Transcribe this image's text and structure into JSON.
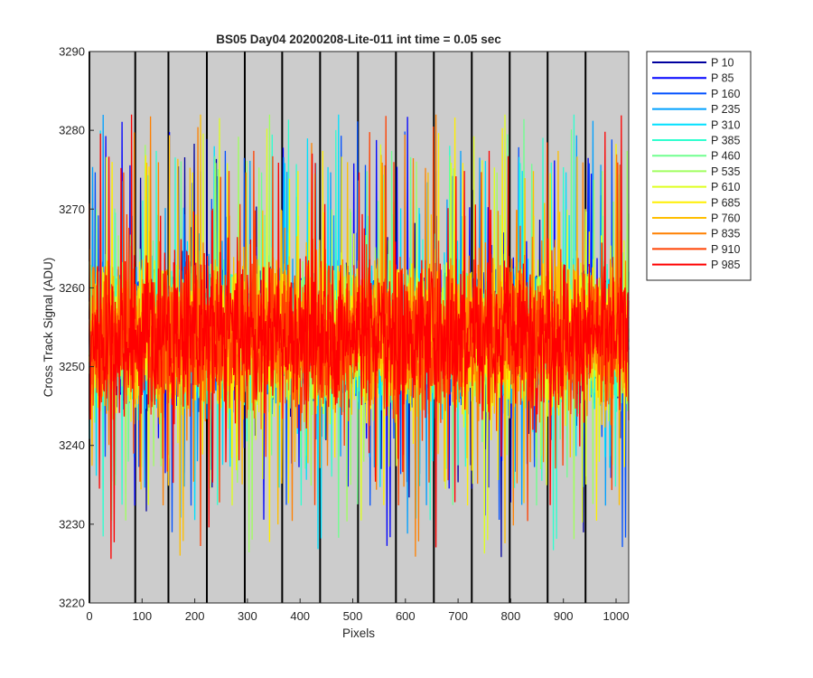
{
  "chart_data": {
    "type": "line",
    "title": "BS05 Day04 20200208-Lite-011 int time = 0.05 sec",
    "xlabel": "Pixels",
    "ylabel": "Cross Track Signal (ADU)",
    "xlim": [
      0,
      1024
    ],
    "ylim": [
      3220,
      3290
    ],
    "xticks": [
      0,
      100,
      200,
      300,
      400,
      500,
      600,
      700,
      800,
      900,
      1000
    ],
    "yticks": [
      3220,
      3230,
      3240,
      3250,
      3260,
      3270,
      3280,
      3290
    ],
    "background": "#cccccc",
    "grid": false,
    "legend_position": "outside-top-right",
    "vertical_marker_lines_x": [
      0,
      87,
      150,
      223,
      295,
      366,
      438,
      510,
      582,
      654,
      726,
      798,
      870,
      942
    ],
    "signal_mean": 3254,
    "signal_core_range": [
      3244,
      3265
    ],
    "signal_extreme_range": [
      3220,
      3282
    ],
    "series": [
      {
        "name": "P 10",
        "color": "#00009f"
      },
      {
        "name": "P 85",
        "color": "#0000ff"
      },
      {
        "name": "P 160",
        "color": "#0050ff"
      },
      {
        "name": "P 235",
        "color": "#00a0ff"
      },
      {
        "name": "P 310",
        "color": "#00e0ff"
      },
      {
        "name": "P 385",
        "color": "#30ffcf"
      },
      {
        "name": "P 460",
        "color": "#70ff8f"
      },
      {
        "name": "P 535",
        "color": "#a0ff60"
      },
      {
        "name": "P 610",
        "color": "#dfff20"
      },
      {
        "name": "P 685",
        "color": "#ffef00"
      },
      {
        "name": "P 760",
        "color": "#ffbf00"
      },
      {
        "name": "P 835",
        "color": "#ff8000"
      },
      {
        "name": "P 910",
        "color": "#ff4000"
      },
      {
        "name": "P 985",
        "color": "#ff0000"
      }
    ]
  }
}
